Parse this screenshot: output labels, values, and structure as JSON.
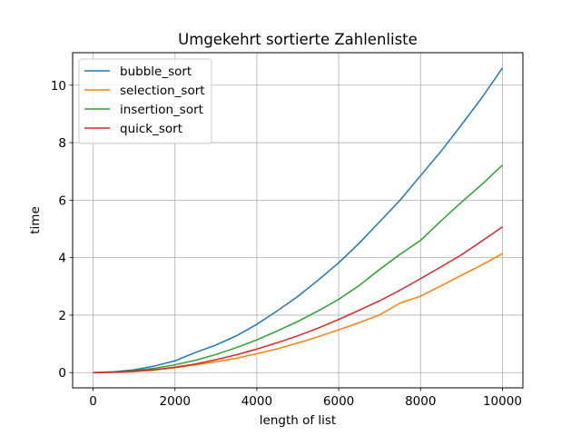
{
  "chart_data": {
    "type": "line",
    "title": "Umgekehrt sortierte Zahlenliste",
    "xlabel": "length of list",
    "ylabel": "time",
    "xlim": [
      -500,
      10500
    ],
    "ylim": [
      -0.53,
      11.13
    ],
    "xticks": [
      0,
      2000,
      4000,
      6000,
      8000,
      10000
    ],
    "yticks": [
      0,
      2,
      4,
      6,
      8,
      10
    ],
    "grid": true,
    "legend_position": "upper-left",
    "x": [
      0,
      500,
      1000,
      1500,
      2000,
      2500,
      3000,
      3500,
      4000,
      4500,
      5000,
      5500,
      6000,
      6500,
      7000,
      7500,
      8000,
      8500,
      9000,
      9500,
      10000
    ],
    "series": [
      {
        "name": "bubble_sort",
        "color": "#1f77b4",
        "values": [
          0.0,
          0.03,
          0.1,
          0.23,
          0.41,
          0.7,
          0.96,
          1.28,
          1.68,
          2.15,
          2.65,
          3.22,
          3.82,
          4.5,
          5.25,
          6.0,
          6.85,
          7.7,
          8.62,
          9.57,
          10.6
        ]
      },
      {
        "name": "selection_sort",
        "color": "#ff7f0e",
        "values": [
          0.0,
          0.01,
          0.04,
          0.09,
          0.17,
          0.27,
          0.38,
          0.5,
          0.66,
          0.83,
          1.03,
          1.25,
          1.49,
          1.74,
          2.01,
          2.42,
          2.66,
          3.02,
          3.39,
          3.75,
          4.14
        ]
      },
      {
        "name": "insertion_sort",
        "color": "#2ca02c",
        "values": [
          0.0,
          0.02,
          0.07,
          0.15,
          0.27,
          0.43,
          0.63,
          0.87,
          1.14,
          1.45,
          1.78,
          2.15,
          2.55,
          3.03,
          3.59,
          4.12,
          4.6,
          5.28,
          5.93,
          6.55,
          7.22
        ]
      },
      {
        "name": "quick_sort",
        "color": "#d62728",
        "values": [
          0.0,
          0.01,
          0.05,
          0.1,
          0.19,
          0.3,
          0.45,
          0.62,
          0.82,
          1.04,
          1.28,
          1.55,
          1.85,
          2.17,
          2.5,
          2.87,
          3.27,
          3.68,
          4.1,
          4.58,
          5.07
        ]
      }
    ]
  }
}
